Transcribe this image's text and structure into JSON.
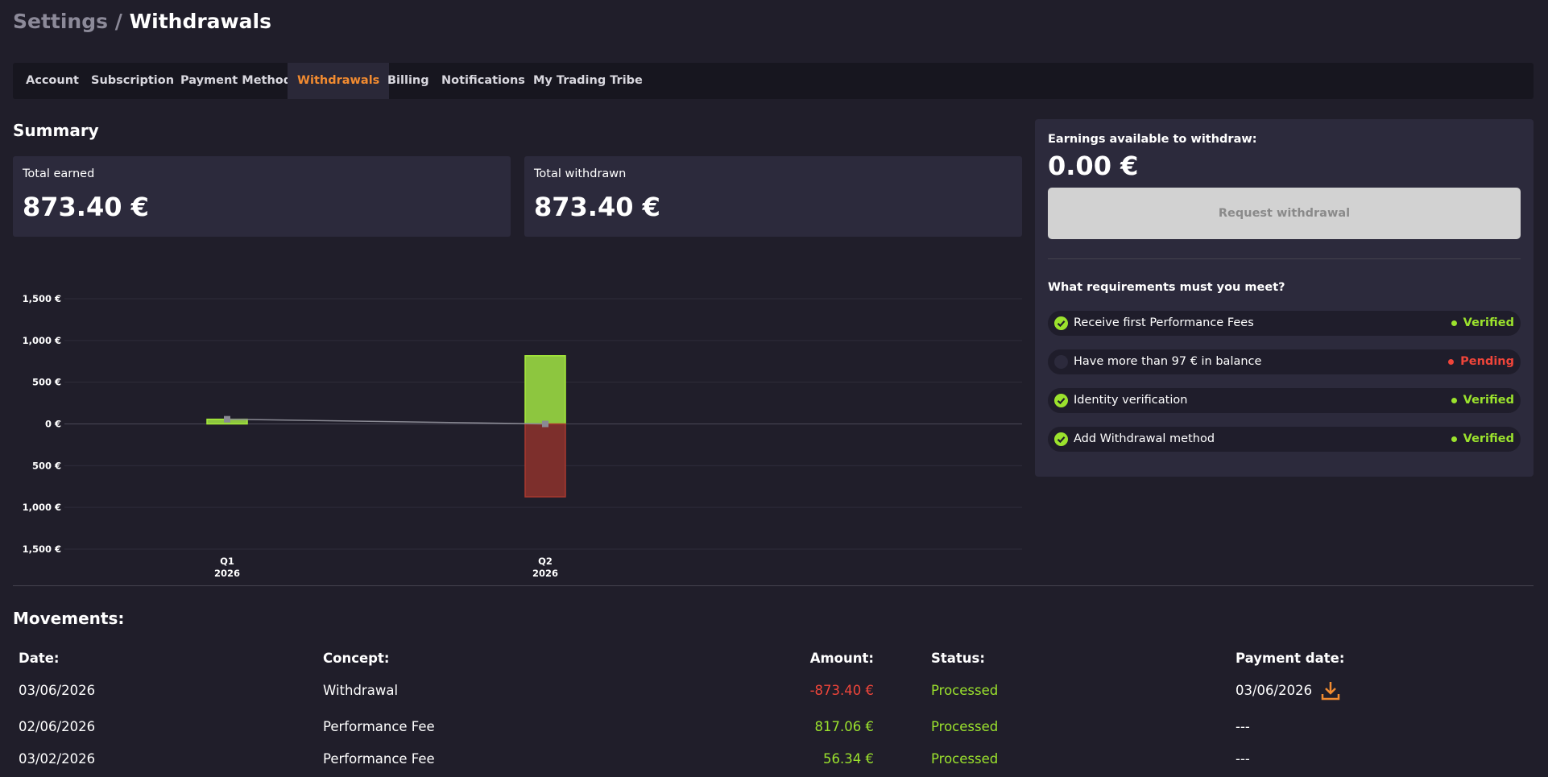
{
  "header": {
    "section": "Settings /",
    "title": "Withdrawals"
  },
  "tabs": {
    "items": [
      "Account",
      "Subscription",
      "Payment Method",
      "Withdrawals",
      "Billing",
      "Notifications",
      "My Trading Tribe"
    ],
    "active": 3
  },
  "summary": {
    "title": "Summary",
    "cards": [
      {
        "label": "Total earned",
        "value": "873.40 €"
      },
      {
        "label": "Total withdrawn",
        "value": "873.40 €"
      }
    ]
  },
  "withdraw_panel": {
    "label": "Earnings available to withdraw:",
    "value": "0.00 €",
    "button": "Request withdrawal",
    "requirements_title": "What requirements must you meet?",
    "requirements": [
      {
        "text": "Receive first Performance Fees",
        "status": "Verified",
        "met": true
      },
      {
        "text": "Have more than 97 € in balance",
        "status": "Pending",
        "met": false
      },
      {
        "text": "Identity verification",
        "status": "Verified",
        "met": true
      },
      {
        "text": "Add Withdrawal method",
        "status": "Verified",
        "met": true
      }
    ]
  },
  "chart_data": {
    "type": "bar",
    "stacked": true,
    "categories": [
      [
        "Q1",
        "2026"
      ],
      [
        "Q2",
        "2026"
      ]
    ],
    "series": [
      {
        "type": "bar",
        "color": "#8dc63f",
        "values": [
          56.34,
          817.06
        ]
      },
      {
        "type": "bar",
        "color": "#7d2f2c",
        "values": [
          0,
          -873.4
        ]
      },
      {
        "type": "line",
        "color": "#8a8a94",
        "values": [
          56.34,
          0
        ]
      }
    ],
    "ylim": [
      -1500,
      1500
    ],
    "yticks": [
      {
        "value": 1500,
        "label": "1,500 €"
      },
      {
        "value": 1000,
        "label": "1,000 €"
      },
      {
        "value": 500,
        "label": "500 €"
      },
      {
        "value": 0,
        "label": "0 €"
      },
      {
        "value": -500,
        "label": "500 €"
      },
      {
        "value": -1000,
        "label": "1,000 €"
      },
      {
        "value": -1500,
        "label": "1,500 €"
      }
    ],
    "grid": true
  },
  "movements": {
    "title": "Movements:",
    "columns": [
      "Date:",
      "Concept:",
      "Amount:",
      "Status:",
      "Payment date:"
    ],
    "rows": [
      {
        "cells": [
          "03/06/2026",
          "Withdrawal",
          "-873.40 €",
          "Processed",
          "03/06/2026"
        ],
        "download": true
      },
      {
        "cells": [
          "02/06/2026",
          "Performance Fee",
          "817.06 €",
          "Processed",
          "---"
        ],
        "download": false
      },
      {
        "cells": [
          "03/02/2026",
          "Performance Fee",
          "56.34 €",
          "Processed",
          "---"
        ],
        "download": false
      }
    ]
  }
}
